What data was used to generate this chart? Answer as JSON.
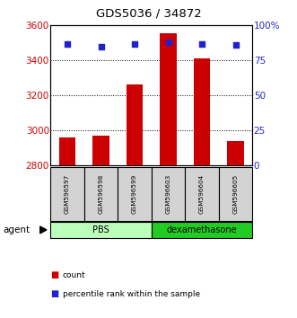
{
  "title": "GDS5036 / 34872",
  "samples": [
    "GSM596597",
    "GSM596598",
    "GSM596599",
    "GSM596603",
    "GSM596604",
    "GSM596605"
  ],
  "counts": [
    2960,
    2970,
    3265,
    3555,
    3410,
    2940
  ],
  "percentile_ranks": [
    87,
    85,
    87,
    88,
    87,
    86
  ],
  "ylim_left": [
    2800,
    3600
  ],
  "ylim_right": [
    0,
    100
  ],
  "yticks_left": [
    2800,
    3000,
    3200,
    3400,
    3600
  ],
  "yticks_right": [
    0,
    25,
    50,
    75,
    100
  ],
  "ytick_labels_right": [
    "0",
    "25",
    "50",
    "75",
    "100%"
  ],
  "bar_color": "#cc0000",
  "dot_color": "#2222cc",
  "bar_base": 2800,
  "groups": [
    {
      "label": "PBS",
      "start": 0,
      "end": 3,
      "color": "#bbffbb"
    },
    {
      "label": "dexamethasone",
      "start": 3,
      "end": 6,
      "color": "#22cc22"
    }
  ],
  "agent_label": "agent",
  "legend_count_label": "count",
  "legend_pct_label": "percentile rank within the sample",
  "left_ylabel_color": "#cc0000",
  "right_ylabel_color": "#2222cc",
  "background_color": "#ffffff",
  "plot_bg_color": "#ffffff",
  "figsize": [
    3.31,
    3.54
  ],
  "dpi": 100
}
